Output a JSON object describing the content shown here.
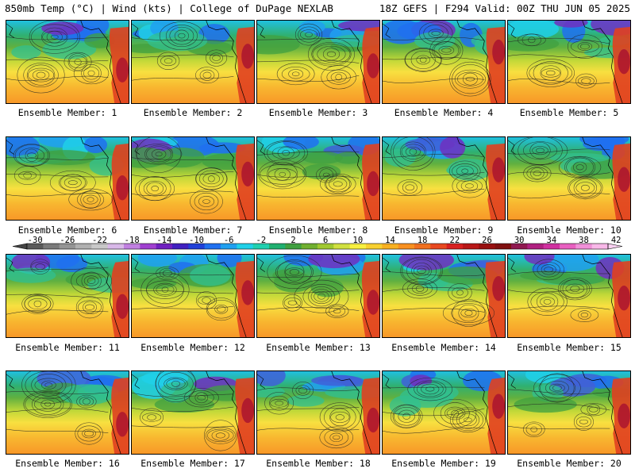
{
  "header": {
    "left": "850mb Temp (°C) | Wind (kts) | College of DuPage NEXLAB",
    "right": "18Z GEFS | F294 Valid: 00Z THU JUN 05 2025"
  },
  "members": [
    "Ensemble Member: 1",
    "Ensemble Member: 2",
    "Ensemble Member: 3",
    "Ensemble Member: 4",
    "Ensemble Member: 5",
    "Ensemble Member: 6",
    "Ensemble Member: 7",
    "Ensemble Member: 8",
    "Ensemble Member: 9",
    "Ensemble Member: 10",
    "Ensemble Member: 11",
    "Ensemble Member: 12",
    "Ensemble Member: 13",
    "Ensemble Member: 14",
    "Ensemble Member: 15",
    "Ensemble Member: 16",
    "Ensemble Member: 17",
    "Ensemble Member: 18",
    "Ensemble Member: 19",
    "Ensemble Member: 20"
  ],
  "colorbar": {
    "labels": [
      "-30",
      "-26",
      "-22",
      "-18",
      "-14",
      "-10",
      "-6",
      "-2",
      "2",
      "6",
      "10",
      "14",
      "18",
      "22",
      "26",
      "30",
      "34",
      "38",
      "42"
    ],
    "colors": [
      "#5a5a5a",
      "#7a7a7a",
      "#959595",
      "#b0b0b0",
      "#c8c8c8",
      "#d8b8e8",
      "#c080e0",
      "#a040d0",
      "#7020c0",
      "#4020c0",
      "#2040d8",
      "#2070f0",
      "#20a0f0",
      "#20d0e8",
      "#20d0b0",
      "#20b070",
      "#40a040",
      "#70b030",
      "#a0c830",
      "#d0e040",
      "#f8f040",
      "#f8d030",
      "#f8b020",
      "#f89020",
      "#f07020",
      "#e84820",
      "#d82020",
      "#b81818",
      "#981010",
      "#801010",
      "#901850",
      "#b02080",
      "#d030a0",
      "#e860c0",
      "#f090d8",
      "#f8b8e8"
    ]
  }
}
